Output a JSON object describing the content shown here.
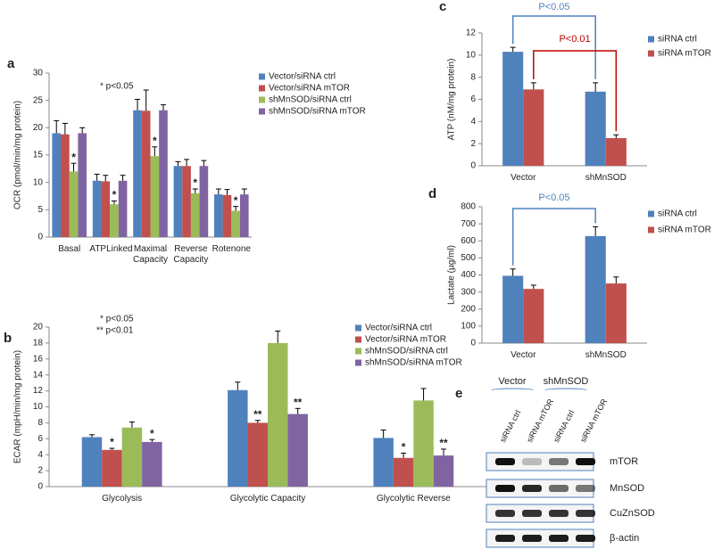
{
  "chart_data": [
    {
      "type": "bar",
      "panel": "a",
      "y_label": "OCR (pmol/min/mg protein)",
      "annotations": [
        "* p<0.05"
      ],
      "categories": [
        "Basal",
        "ATPLinked",
        "Maximal Capacity",
        "Reverse Capacity",
        "Rotenone"
      ],
      "ylim": [
        0,
        30
      ],
      "yticks": [
        0,
        5,
        10,
        15,
        20,
        25,
        30
      ],
      "legend": "upper right",
      "series": [
        {
          "name": "Vector/siRNA ctrl",
          "color": "#4f81bd",
          "values": [
            19,
            10.3,
            23.2,
            13,
            7.8
          ],
          "errors": [
            2.3,
            1.2,
            2,
            0.8,
            1
          ],
          "significance": [
            null,
            null,
            null,
            null,
            null
          ]
        },
        {
          "name": "Vector/siRNA mTOR",
          "color": "#c0504d",
          "values": [
            18.8,
            10.2,
            23.1,
            13,
            7.7
          ],
          "errors": [
            2,
            1.1,
            3.8,
            1.2,
            1
          ],
          "significance": [
            null,
            null,
            null,
            null,
            null
          ]
        },
        {
          "name": "shMnSOD/siRNA ctrl",
          "color": "#9bbb59",
          "values": [
            12,
            6,
            14.8,
            8,
            4.8
          ],
          "errors": [
            1.5,
            0.6,
            1.7,
            0.8,
            0.8
          ],
          "significance": [
            "*",
            "*",
            "*",
            "*",
            "*"
          ]
        },
        {
          "name": "shMnSOD/siRNA mTOR",
          "color": "#8064a2",
          "values": [
            19,
            10.3,
            23.2,
            13,
            7.8
          ],
          "errors": [
            1,
            1,
            1,
            1,
            1
          ],
          "significance": [
            null,
            null,
            null,
            null,
            null
          ]
        }
      ]
    },
    {
      "type": "bar",
      "panel": "b",
      "y_label": "ECAR (mpH/min/mg protein)",
      "annotations": [
        "* p<0.05",
        "** p<0.01"
      ],
      "categories": [
        "Glycolysis",
        "Glycolytic Capacity",
        "Glycolytic Reverse"
      ],
      "ylim": [
        0,
        20
      ],
      "yticks": [
        0,
        2,
        4,
        6,
        8,
        10,
        12,
        14,
        16,
        18,
        20
      ],
      "legend": "upper right",
      "series": [
        {
          "name": "Vector/siRNA ctrl",
          "color": "#4f81bd",
          "values": [
            6.2,
            12.1,
            6.1
          ],
          "errors": [
            0.3,
            1,
            1
          ],
          "significance": [
            null,
            null,
            null
          ]
        },
        {
          "name": "Vector/siRNA mTOR",
          "color": "#c0504d",
          "values": [
            4.6,
            8,
            3.6
          ],
          "errors": [
            0.2,
            0.3,
            0.6
          ],
          "significance": [
            "*",
            "**",
            "*"
          ]
        },
        {
          "name": "shMnSOD/siRNA ctrl",
          "color": "#9bbb59",
          "values": [
            7.4,
            18,
            10.8
          ],
          "errors": [
            0.7,
            1.5,
            1.5
          ],
          "significance": [
            null,
            null,
            null
          ]
        },
        {
          "name": "shMnSOD/siRNA mTOR",
          "color": "#8064a2",
          "values": [
            5.6,
            9.1,
            3.9
          ],
          "errors": [
            0.3,
            0.7,
            0.8
          ],
          "significance": [
            "*",
            "**",
            "**"
          ]
        }
      ]
    },
    {
      "type": "bar",
      "panel": "c",
      "y_label": "ATP (nM/mg protein)",
      "categories": [
        "Vector",
        "shMnSOD"
      ],
      "ylim": [
        0,
        12
      ],
      "yticks": [
        0,
        2,
        4,
        6,
        8,
        10,
        12
      ],
      "legend": "right",
      "comparisons": [
        {
          "label": "P<0.05",
          "color": "#4f81bd"
        },
        {
          "label": "P<0.01",
          "color": "#c00000"
        }
      ],
      "series": [
        {
          "name": "siRNA ctrl",
          "color": "#4f81bd",
          "values": [
            10.3,
            6.7
          ],
          "errors": [
            0.4,
            0.8
          ]
        },
        {
          "name": "siRNA mTOR",
          "color": "#c0504d",
          "values": [
            6.9,
            2.5
          ],
          "errors": [
            0.6,
            0.3
          ]
        }
      ]
    },
    {
      "type": "bar",
      "panel": "d",
      "y_label": "Lactate (µg/ml)",
      "categories": [
        "Vector",
        "shMnSOD"
      ],
      "ylim": [
        0,
        800
      ],
      "yticks": [
        0,
        100,
        200,
        300,
        400,
        500,
        600,
        700,
        800
      ],
      "legend": "right",
      "comparisons": [
        {
          "label": "P<0.05",
          "color": "#4f81bd"
        }
      ],
      "series": [
        {
          "name": "siRNA ctrl",
          "color": "#4f81bd",
          "values": [
            395,
            628
          ],
          "errors": [
            40,
            55
          ]
        },
        {
          "name": "siRNA mTOR",
          "color": "#c0504d",
          "values": [
            318,
            350
          ],
          "errors": [
            22,
            38
          ]
        }
      ]
    }
  ],
  "blot": {
    "panel": "e",
    "groups": [
      "Vector",
      "shMnSOD"
    ],
    "lanes": [
      "siRNA ctrl",
      "siRNA mTOR",
      "siRNA ctrl",
      "siRNA mTOR"
    ],
    "proteins": [
      "mTOR",
      "MnSOD",
      "CuZnSOD",
      "β-actin"
    ]
  }
}
